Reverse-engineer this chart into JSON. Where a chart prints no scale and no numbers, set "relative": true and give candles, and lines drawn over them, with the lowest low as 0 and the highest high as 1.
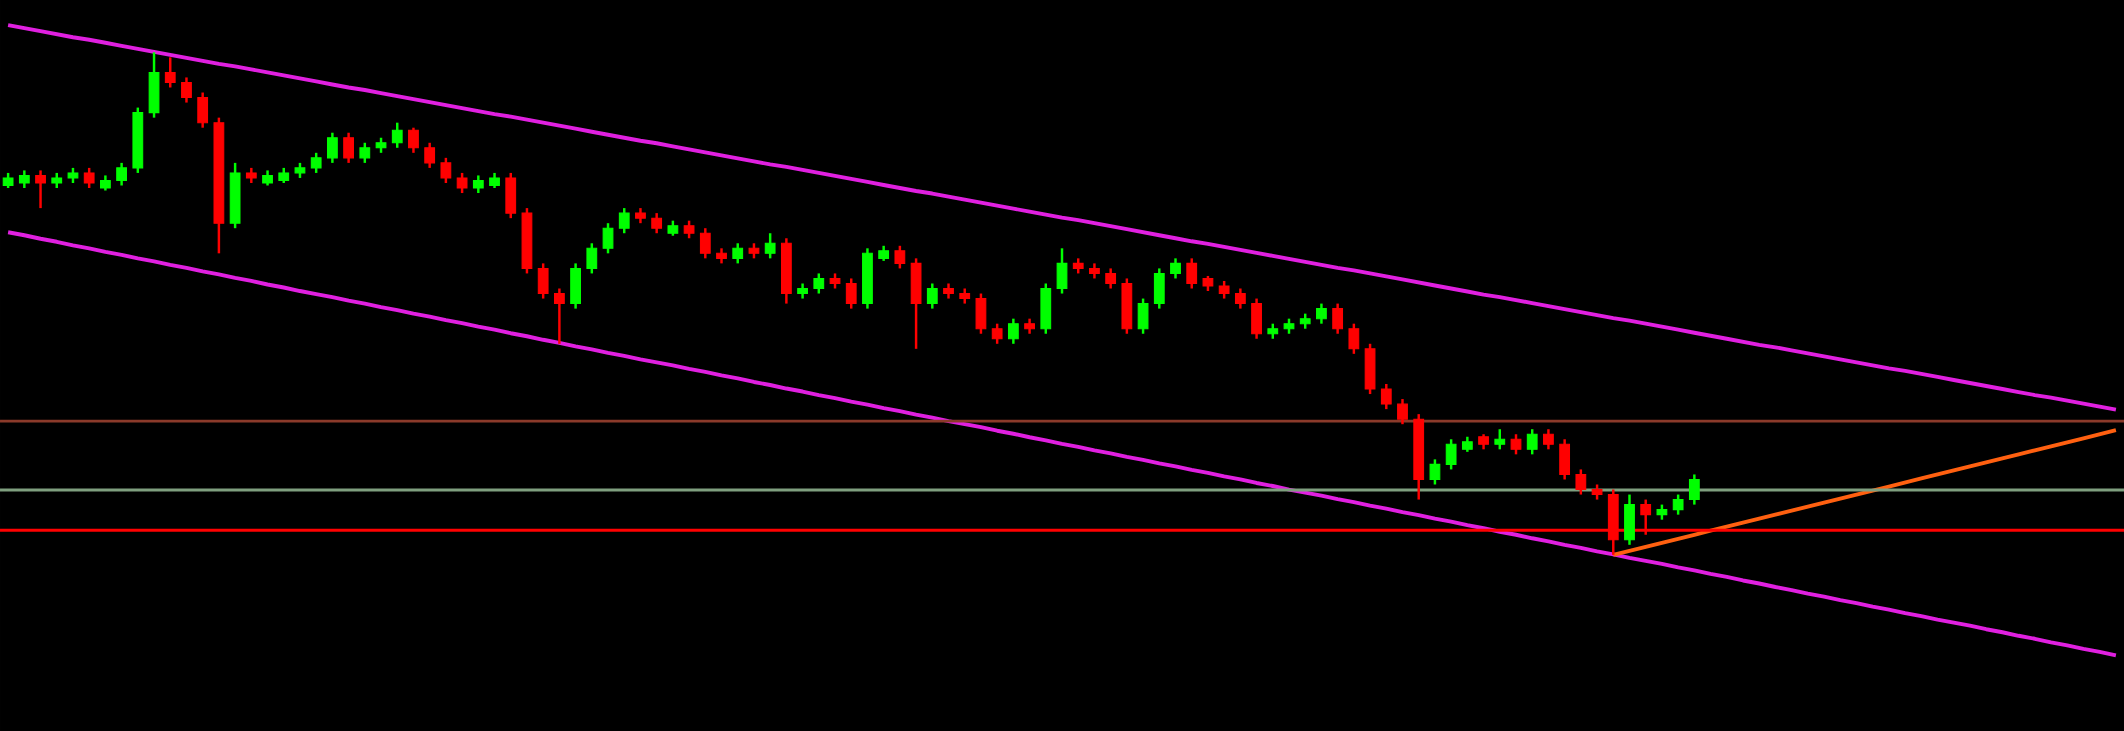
{
  "chart_data": {
    "type": "candlestick",
    "relative": true,
    "categories": [
      null,
      null,
      null,
      null,
      null,
      null,
      null,
      null,
      null,
      null,
      null,
      null,
      null,
      null,
      null,
      null,
      null,
      null,
      null,
      null,
      null,
      null,
      null,
      null,
      null,
      null,
      null,
      null,
      null,
      null,
      null,
      null,
      null,
      null,
      null,
      null,
      null,
      null,
      null,
      null,
      null,
      null,
      null,
      null,
      null,
      null,
      null,
      null,
      null,
      null,
      null,
      null,
      null,
      null,
      null,
      null,
      null,
      null,
      null,
      null,
      null,
      null,
      null,
      null,
      null,
      null,
      null,
      null,
      null,
      null,
      null,
      null,
      null,
      null,
      null,
      null,
      null,
      null,
      null,
      null,
      null,
      null,
      null,
      null,
      null,
      null,
      null,
      null,
      null,
      null,
      null,
      null,
      null,
      null,
      null,
      null,
      null,
      null,
      null,
      null,
      null,
      null,
      null,
      null,
      null,
      null,
      null,
      null,
      null,
      null,
      null,
      null,
      null,
      null,
      null,
      null,
      null,
      null,
      null,
      null,
      null,
      null,
      null,
      null,
      null,
      null,
      null,
      null,
      null,
      null,
      null
    ],
    "ohlc": [
      [
        0.735,
        0.76,
        0.73,
        0.75
      ],
      [
        0.74,
        0.765,
        0.73,
        0.755
      ],
      [
        0.755,
        0.765,
        0.69,
        0.74
      ],
      [
        0.74,
        0.76,
        0.73,
        0.75
      ],
      [
        0.75,
        0.77,
        0.74,
        0.76
      ],
      [
        0.76,
        0.77,
        0.73,
        0.74
      ],
      [
        0.73,
        0.755,
        0.725,
        0.745
      ],
      [
        0.745,
        0.78,
        0.735,
        0.77
      ],
      [
        0.77,
        0.89,
        0.76,
        0.88
      ],
      [
        0.88,
        1.0,
        0.87,
        0.96
      ],
      [
        0.96,
        0.99,
        0.93,
        0.94
      ],
      [
        0.94,
        0.95,
        0.9,
        0.91
      ],
      [
        0.91,
        0.92,
        0.85,
        0.86
      ],
      [
        0.86,
        0.87,
        0.6,
        0.66
      ],
      [
        0.66,
        0.78,
        0.65,
        0.76
      ],
      [
        0.76,
        0.77,
        0.74,
        0.75
      ],
      [
        0.74,
        0.765,
        0.735,
        0.755
      ],
      [
        0.745,
        0.77,
        0.74,
        0.76
      ],
      [
        0.76,
        0.78,
        0.75,
        0.77
      ],
      [
        0.77,
        0.8,
        0.76,
        0.79
      ],
      [
        0.79,
        0.84,
        0.78,
        0.83
      ],
      [
        0.83,
        0.84,
        0.78,
        0.79
      ],
      [
        0.79,
        0.82,
        0.78,
        0.81
      ],
      [
        0.81,
        0.83,
        0.8,
        0.82
      ],
      [
        0.82,
        0.86,
        0.81,
        0.845
      ],
      [
        0.845,
        0.85,
        0.8,
        0.81
      ],
      [
        0.81,
        0.82,
        0.77,
        0.78
      ],
      [
        0.78,
        0.79,
        0.74,
        0.75
      ],
      [
        0.75,
        0.76,
        0.72,
        0.73
      ],
      [
        0.73,
        0.755,
        0.72,
        0.745
      ],
      [
        0.735,
        0.76,
        0.73,
        0.75
      ],
      [
        0.75,
        0.76,
        0.67,
        0.68
      ],
      [
        0.68,
        0.69,
        0.56,
        0.57
      ],
      [
        0.57,
        0.58,
        0.51,
        0.52
      ],
      [
        0.52,
        0.53,
        0.42,
        0.5
      ],
      [
        0.5,
        0.58,
        0.49,
        0.57
      ],
      [
        0.57,
        0.62,
        0.56,
        0.61
      ],
      [
        0.61,
        0.66,
        0.6,
        0.65
      ],
      [
        0.65,
        0.69,
        0.64,
        0.68
      ],
      [
        0.68,
        0.69,
        0.66,
        0.67
      ],
      [
        0.67,
        0.68,
        0.64,
        0.65
      ],
      [
        0.64,
        0.665,
        0.635,
        0.655
      ],
      [
        0.655,
        0.665,
        0.63,
        0.64
      ],
      [
        0.64,
        0.65,
        0.59,
        0.6
      ],
      [
        0.6,
        0.61,
        0.58,
        0.59
      ],
      [
        0.59,
        0.62,
        0.58,
        0.61
      ],
      [
        0.61,
        0.62,
        0.59,
        0.6
      ],
      [
        0.6,
        0.64,
        0.59,
        0.62
      ],
      [
        0.62,
        0.63,
        0.5,
        0.52
      ],
      [
        0.52,
        0.54,
        0.51,
        0.53
      ],
      [
        0.53,
        0.56,
        0.52,
        0.55
      ],
      [
        0.55,
        0.56,
        0.53,
        0.54
      ],
      [
        0.54,
        0.55,
        0.49,
        0.5
      ],
      [
        0.5,
        0.61,
        0.49,
        0.6
      ],
      [
        0.59,
        0.615,
        0.585,
        0.605
      ],
      [
        0.605,
        0.615,
        0.57,
        0.58
      ],
      [
        0.58,
        0.59,
        0.41,
        0.5
      ],
      [
        0.5,
        0.54,
        0.49,
        0.53
      ],
      [
        0.53,
        0.54,
        0.51,
        0.52
      ],
      [
        0.52,
        0.53,
        0.5,
        0.51
      ],
      [
        0.51,
        0.52,
        0.44,
        0.45
      ],
      [
        0.45,
        0.46,
        0.42,
        0.43
      ],
      [
        0.43,
        0.47,
        0.42,
        0.46
      ],
      [
        0.46,
        0.47,
        0.44,
        0.45
      ],
      [
        0.45,
        0.54,
        0.44,
        0.53
      ],
      [
        0.53,
        0.61,
        0.52,
        0.58
      ],
      [
        0.58,
        0.59,
        0.56,
        0.57
      ],
      [
        0.57,
        0.58,
        0.55,
        0.56
      ],
      [
        0.56,
        0.57,
        0.53,
        0.54
      ],
      [
        0.54,
        0.55,
        0.44,
        0.45
      ],
      [
        0.45,
        0.51,
        0.44,
        0.5
      ],
      [
        0.5,
        0.57,
        0.49,
        0.56
      ],
      [
        0.56,
        0.59,
        0.55,
        0.58
      ],
      [
        0.58,
        0.59,
        0.53,
        0.54
      ],
      [
        0.55,
        0.555,
        0.525,
        0.535
      ],
      [
        0.535,
        0.545,
        0.51,
        0.52
      ],
      [
        0.52,
        0.53,
        0.49,
        0.5
      ],
      [
        0.5,
        0.51,
        0.43,
        0.44
      ],
      [
        0.44,
        0.46,
        0.43,
        0.45
      ],
      [
        0.45,
        0.47,
        0.44,
        0.46
      ],
      [
        0.46,
        0.48,
        0.45,
        0.47
      ],
      [
        0.47,
        0.5,
        0.46,
        0.49
      ],
      [
        0.49,
        0.5,
        0.44,
        0.45
      ],
      [
        0.45,
        0.46,
        0.4,
        0.41
      ],
      [
        0.41,
        0.42,
        0.32,
        0.33
      ],
      [
        0.33,
        0.34,
        0.29,
        0.3
      ],
      [
        0.3,
        0.31,
        0.26,
        0.27
      ],
      [
        0.27,
        0.28,
        0.11,
        0.15
      ],
      [
        0.15,
        0.19,
        0.14,
        0.18
      ],
      [
        0.18,
        0.23,
        0.17,
        0.22
      ],
      [
        0.21,
        0.235,
        0.205,
        0.225
      ],
      [
        0.235,
        0.24,
        0.21,
        0.22
      ],
      [
        0.22,
        0.25,
        0.21,
        0.23
      ],
      [
        0.23,
        0.24,
        0.2,
        0.21
      ],
      [
        0.21,
        0.25,
        0.2,
        0.24
      ],
      [
        0.24,
        0.25,
        0.21,
        0.22
      ],
      [
        0.22,
        0.23,
        0.15,
        0.16
      ],
      [
        0.16,
        0.17,
        0.12,
        0.13
      ],
      [
        0.13,
        0.14,
        0.11,
        0.12
      ],
      [
        0.12,
        0.13,
        0.0,
        0.03
      ],
      [
        0.03,
        0.12,
        0.02,
        0.1
      ],
      [
        0.1,
        0.11,
        0.04,
        0.08
      ],
      [
        0.08,
        0.1,
        0.07,
        0.09
      ],
      [
        0.09,
        0.12,
        0.08,
        0.11
      ],
      [
        0.11,
        0.16,
        0.1,
        0.15
      ],
      null,
      null,
      null,
      null,
      null,
      null,
      null,
      null,
      null,
      null,
      null,
      null,
      null,
      null,
      null,
      null,
      null,
      null,
      null,
      null,
      null,
      null,
      null,
      null,
      null,
      null
    ],
    "series": [
      {
        "type": "line",
        "color": "#e020e0",
        "values": [
          1.054,
          1.048,
          1.042,
          1.036,
          1.03,
          1.025,
          1.019,
          1.013,
          1.007,
          1.001,
          0.995,
          0.989,
          0.983,
          0.977,
          0.972,
          0.966,
          0.96,
          0.954,
          0.948,
          0.942,
          0.936,
          0.93,
          0.925,
          0.919,
          0.913,
          0.907,
          0.901,
          0.895,
          0.889,
          0.883,
          0.877,
          0.872,
          0.866,
          0.86,
          0.854,
          0.848,
          0.842,
          0.836,
          0.83,
          0.824,
          0.819,
          0.813,
          0.807,
          0.801,
          0.795,
          0.789,
          0.783,
          0.777,
          0.772,
          0.766,
          0.76,
          0.754,
          0.748,
          0.742,
          0.736,
          0.73,
          0.724,
          0.719,
          0.713,
          0.707,
          0.701,
          0.695,
          0.689,
          0.683,
          0.677,
          0.671,
          0.666,
          0.66,
          0.654,
          0.648,
          0.642,
          0.636,
          0.63,
          0.624,
          0.619,
          0.613,
          0.607,
          0.601,
          0.595,
          0.589,
          0.583,
          0.577,
          0.571,
          0.566,
          0.56,
          0.554,
          0.548,
          0.542,
          0.536,
          0.53,
          0.524,
          0.518,
          0.513,
          0.507,
          0.501,
          0.495,
          0.489,
          0.483,
          0.477,
          0.471,
          0.466,
          0.46,
          0.454,
          0.448,
          0.442,
          0.436,
          0.43,
          0.424,
          0.418,
          0.413,
          0.407,
          0.401,
          0.395,
          0.389,
          0.383,
          0.377,
          0.371,
          0.366,
          0.36,
          0.354,
          0.348,
          0.342,
          0.336,
          0.33,
          0.324,
          0.318,
          0.313,
          0.307,
          0.301,
          0.295,
          0.289
        ]
      },
      {
        "type": "line",
        "color": "#e020e0",
        "values": [
          0.642,
          0.636,
          0.629,
          0.623,
          0.616,
          0.61,
          0.603,
          0.597,
          0.59,
          0.584,
          0.577,
          0.571,
          0.564,
          0.558,
          0.551,
          0.545,
          0.538,
          0.532,
          0.525,
          0.519,
          0.513,
          0.506,
          0.5,
          0.493,
          0.487,
          0.48,
          0.474,
          0.467,
          0.461,
          0.454,
          0.448,
          0.441,
          0.435,
          0.428,
          0.422,
          0.415,
          0.409,
          0.402,
          0.396,
          0.389,
          0.383,
          0.377,
          0.37,
          0.364,
          0.357,
          0.351,
          0.344,
          0.338,
          0.331,
          0.325,
          0.318,
          0.312,
          0.305,
          0.299,
          0.292,
          0.286,
          0.279,
          0.273,
          0.266,
          0.26,
          0.254,
          0.247,
          0.241,
          0.234,
          0.228,
          0.221,
          0.215,
          0.208,
          0.202,
          0.195,
          0.189,
          0.182,
          0.176,
          0.169,
          0.163,
          0.156,
          0.15,
          0.143,
          0.137,
          0.13,
          0.124,
          0.118,
          0.111,
          0.105,
          0.098,
          0.092,
          0.085,
          0.079,
          0.072,
          0.066,
          0.059,
          0.053,
          0.046,
          0.04,
          0.033,
          0.027,
          0.02,
          0.014,
          0.007,
          0.001,
          -0.006,
          -0.012,
          -0.018,
          -0.025,
          -0.031,
          -0.038,
          -0.044,
          -0.051,
          -0.057,
          -0.064,
          -0.07,
          -0.077,
          -0.083,
          -0.09,
          -0.096,
          -0.103,
          -0.109,
          -0.116,
          -0.122,
          -0.129,
          -0.135,
          -0.141,
          -0.148,
          -0.154,
          -0.161,
          -0.167,
          -0.174,
          -0.18,
          -0.187,
          -0.193,
          -0.2
        ]
      },
      {
        "type": "line",
        "color": "#ff6010",
        "values": [
          null,
          null,
          null,
          null,
          null,
          null,
          null,
          null,
          null,
          null,
          null,
          null,
          null,
          null,
          null,
          null,
          null,
          null,
          null,
          null,
          null,
          null,
          null,
          null,
          null,
          null,
          null,
          null,
          null,
          null,
          null,
          null,
          null,
          null,
          null,
          null,
          null,
          null,
          null,
          null,
          null,
          null,
          null,
          null,
          null,
          null,
          null,
          null,
          null,
          null,
          null,
          null,
          null,
          null,
          null,
          null,
          null,
          null,
          null,
          null,
          null,
          null,
          null,
          null,
          null,
          null,
          null,
          null,
          null,
          null,
          null,
          null,
          null,
          null,
          null,
          null,
          null,
          null,
          null,
          null,
          null,
          null,
          null,
          null,
          null,
          null,
          null,
          null,
          null,
          null,
          null,
          null,
          null,
          null,
          null,
          null,
          null,
          null,
          null,
          0,
          0.008,
          0.016,
          0.024,
          0.032,
          0.04,
          0.048,
          0.056,
          0.064,
          0.072,
          0.08,
          0.088,
          0.096,
          0.104,
          0.112,
          0.12,
          0.128,
          0.136,
          0.144,
          0.152,
          0.16,
          0.168,
          0.176,
          0.184,
          0.192,
          0.2,
          0.208,
          0.216,
          0.224,
          0.232,
          0.24,
          0.248
        ]
      }
    ],
    "ref_lines": [
      {
        "axis": "y",
        "value": 0.266,
        "color": "#8b3a2a"
      },
      {
        "axis": "y",
        "value": 0.129,
        "color": "#7f9f7f"
      },
      {
        "axis": "y",
        "value": 0.049,
        "color": "#ff0000"
      }
    ]
  }
}
